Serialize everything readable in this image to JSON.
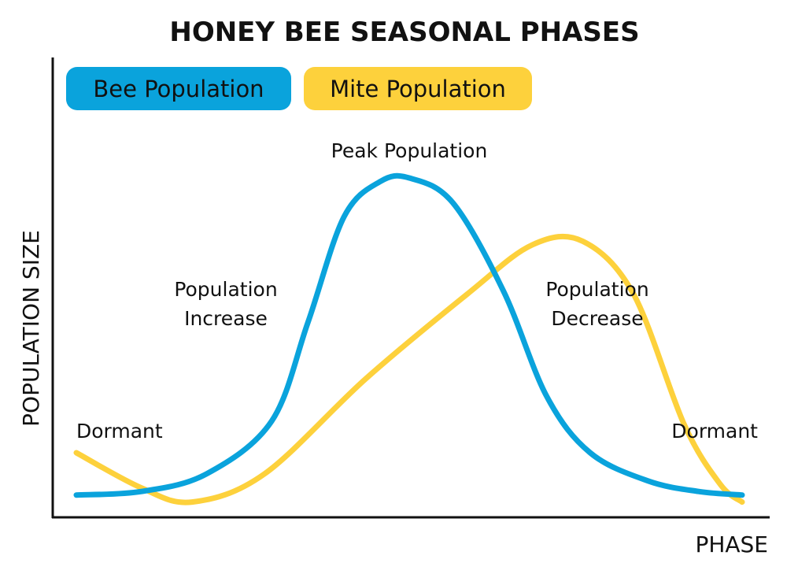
{
  "chart_data": {
    "type": "line",
    "title": "HONEY BEE SEASONAL PHASES",
    "xlabel": "PHASE",
    "ylabel": "POPULATION SIZE",
    "xlim": [
      0,
      100
    ],
    "ylim": [
      0,
      100
    ],
    "grid": false,
    "axis_ticks": false,
    "legend": {
      "placement": "top-left",
      "entries": [
        "Bee Population",
        "Mite Population"
      ]
    },
    "series": [
      {
        "name": "Bee Population",
        "color": "#0aa3dc",
        "points": [
          [
            0,
            7
          ],
          [
            9,
            8
          ],
          [
            18,
            13
          ],
          [
            27,
            28
          ],
          [
            32,
            56
          ],
          [
            37,
            86
          ],
          [
            42,
            96
          ],
          [
            46,
            97
          ],
          [
            52,
            90
          ],
          [
            59,
            65
          ],
          [
            65,
            35
          ],
          [
            71,
            19
          ],
          [
            79,
            11
          ],
          [
            86,
            8
          ],
          [
            92,
            7
          ]
        ]
      },
      {
        "name": "Mite Population",
        "color": "#fdd13c",
        "points": [
          [
            0,
            19
          ],
          [
            9,
            9
          ],
          [
            16,
            5
          ],
          [
            26,
            13
          ],
          [
            40,
            40
          ],
          [
            54,
            64
          ],
          [
            63,
            78
          ],
          [
            70,
            79
          ],
          [
            77,
            64
          ],
          [
            84,
            27
          ],
          [
            89,
            10
          ],
          [
            92,
            5
          ]
        ]
      }
    ],
    "annotations": [
      "Peak Population",
      "Population Increase",
      "Population Decrease",
      "Dormant",
      "Dormant"
    ]
  },
  "annotations": {
    "peak": "Peak Population",
    "increase_line1": "Population",
    "increase_line2": "Increase",
    "decrease_line1": "Population",
    "decrease_line2": "Decrease",
    "dormant_left": "Dormant",
    "dormant_right": "Dormant"
  }
}
